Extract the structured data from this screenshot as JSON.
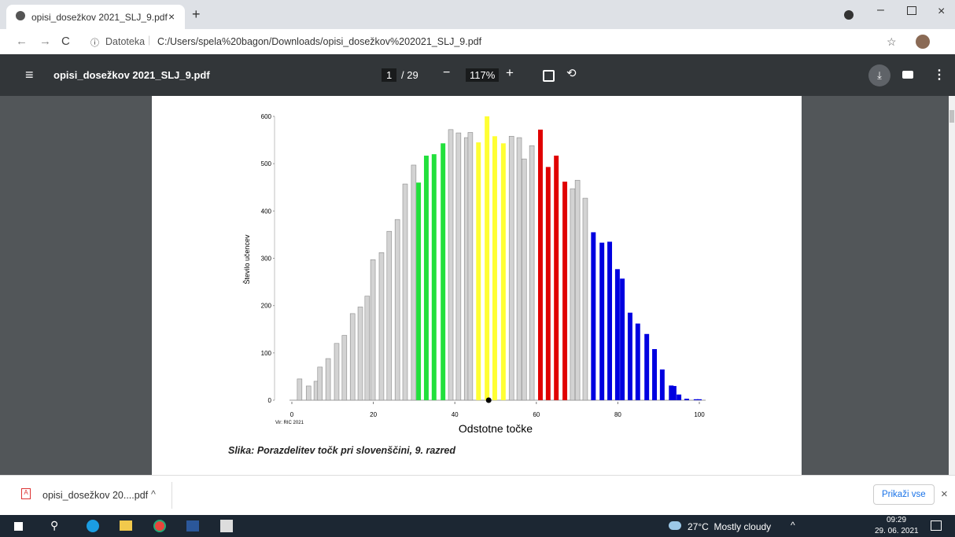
{
  "browser": {
    "tab_title": "opisi_dosežkov 2021_SLJ_9.pdf",
    "address_prefix": "Datoteka",
    "url": "C:/Users/spela%20bagon/Downloads/opisi_dosežkov%202021_SLJ_9.pdf"
  },
  "pdf_toolbar": {
    "title": "opisi_dosežkov 2021_SLJ_9.pdf",
    "page": "1",
    "page_total": "/ 29",
    "zoom": "117%"
  },
  "chart_data": {
    "type": "bar",
    "y_label": "Število učencev",
    "x_label": "Odstotne točke",
    "source": "Vir: RIC 2021",
    "caption": "Slika: Porazdelitev točk pri slovenščini, 9. razred",
    "xlim": [
      0,
      100
    ],
    "xticks": [
      0,
      20,
      40,
      60,
      80,
      100
    ],
    "ylim": [
      0,
      600
    ],
    "yticks": [
      0,
      100,
      200,
      300,
      400,
      500,
      600
    ],
    "marker_x": 48.3,
    "series": [
      {
        "color": "#d3d3d3",
        "x": [
          1.9,
          4.1,
          6.0,
          6.9,
          8.9,
          11.0,
          12.9,
          14.9,
          16.8,
          18.5,
          19.9,
          22.0,
          23.9,
          25.9,
          27.8,
          29.9,
          39.0,
          40.9,
          42.9,
          43.8,
          53.9,
          55.8,
          57.0,
          58.9,
          68.9,
          70.1,
          72.0
        ],
        "values": [
          45,
          30,
          40,
          70,
          88,
          120,
          137,
          183,
          197,
          220,
          297,
          312,
          357,
          382,
          457,
          497,
          572,
          565,
          555,
          566,
          558,
          555,
          510,
          538,
          447,
          465,
          427
        ]
      },
      {
        "color": "#22e03c",
        "x": [
          31.1,
          33.0,
          34.9,
          37.1
        ],
        "values": [
          460,
          517,
          520,
          543
        ]
      },
      {
        "color": "#ffff33",
        "x": [
          45.8,
          47.9,
          49.8,
          51.9
        ],
        "values": [
          545,
          600,
          558,
          543
        ]
      },
      {
        "color": "#e00000",
        "x": [
          61.0,
          62.9,
          64.9,
          67.0
        ],
        "values": [
          572,
          493,
          517,
          462
        ]
      },
      {
        "color": "#0000e0",
        "x": [
          74.0,
          76.1,
          78.0,
          79.9,
          81.1,
          83.0,
          84.9,
          87.1,
          89.0,
          90.9,
          93.1,
          93.8,
          95.0,
          96.9,
          99.2,
          100
        ],
        "values": [
          355,
          333,
          335,
          277,
          257,
          185,
          162,
          140,
          108,
          65,
          31,
          30,
          12,
          3,
          2,
          2
        ]
      }
    ]
  },
  "download_bar": {
    "file": "opisi_dosežkov 20....pdf",
    "show_all": "Prikaži vse"
  },
  "taskbar": {
    "weather": "27°C  Mostly cloudy",
    "time": "09:29",
    "date": "29. 06. 2021"
  }
}
